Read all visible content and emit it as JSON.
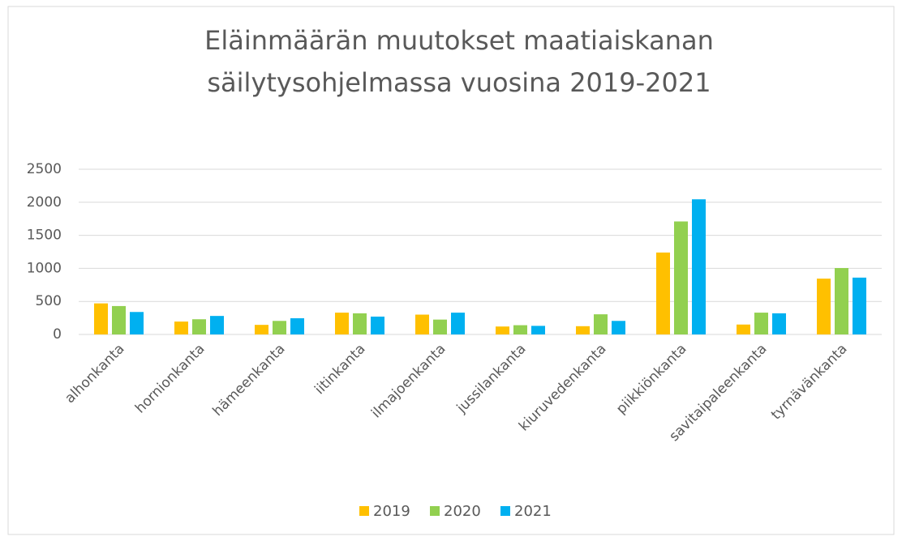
{
  "chart_data": {
    "type": "bar",
    "title": [
      "Eläinmäärän muutokset maatiaiskanan",
      "säilytysohjelmassa vuosina 2019-2021"
    ],
    "categories": [
      "alhonkanta",
      "hornionkanta",
      "hämeenkanta",
      "iitinkanta",
      "ilmajoenkanta",
      "jussilankanta",
      "kiuruvedenkanta",
      "piikkiönkanta",
      "savitaipaleenkanta",
      "tyrnävänkanta"
    ],
    "series": [
      {
        "name": "2019",
        "color": "#FFC000",
        "values": [
          470,
          195,
          145,
          330,
          300,
          120,
          125,
          1240,
          150,
          845
        ]
      },
      {
        "name": "2020",
        "color": "#92D050",
        "values": [
          430,
          230,
          205,
          320,
          225,
          140,
          305,
          1710,
          330,
          1005
        ]
      },
      {
        "name": "2021",
        "color": "#00B0F0",
        "values": [
          340,
          280,
          245,
          270,
          330,
          130,
          205,
          2045,
          320,
          860
        ]
      }
    ],
    "ylim": [
      0,
      2500
    ],
    "yticks": [
      0,
      500,
      1000,
      1500,
      2000,
      2500
    ],
    "grid": true,
    "legend": "bottom"
  }
}
